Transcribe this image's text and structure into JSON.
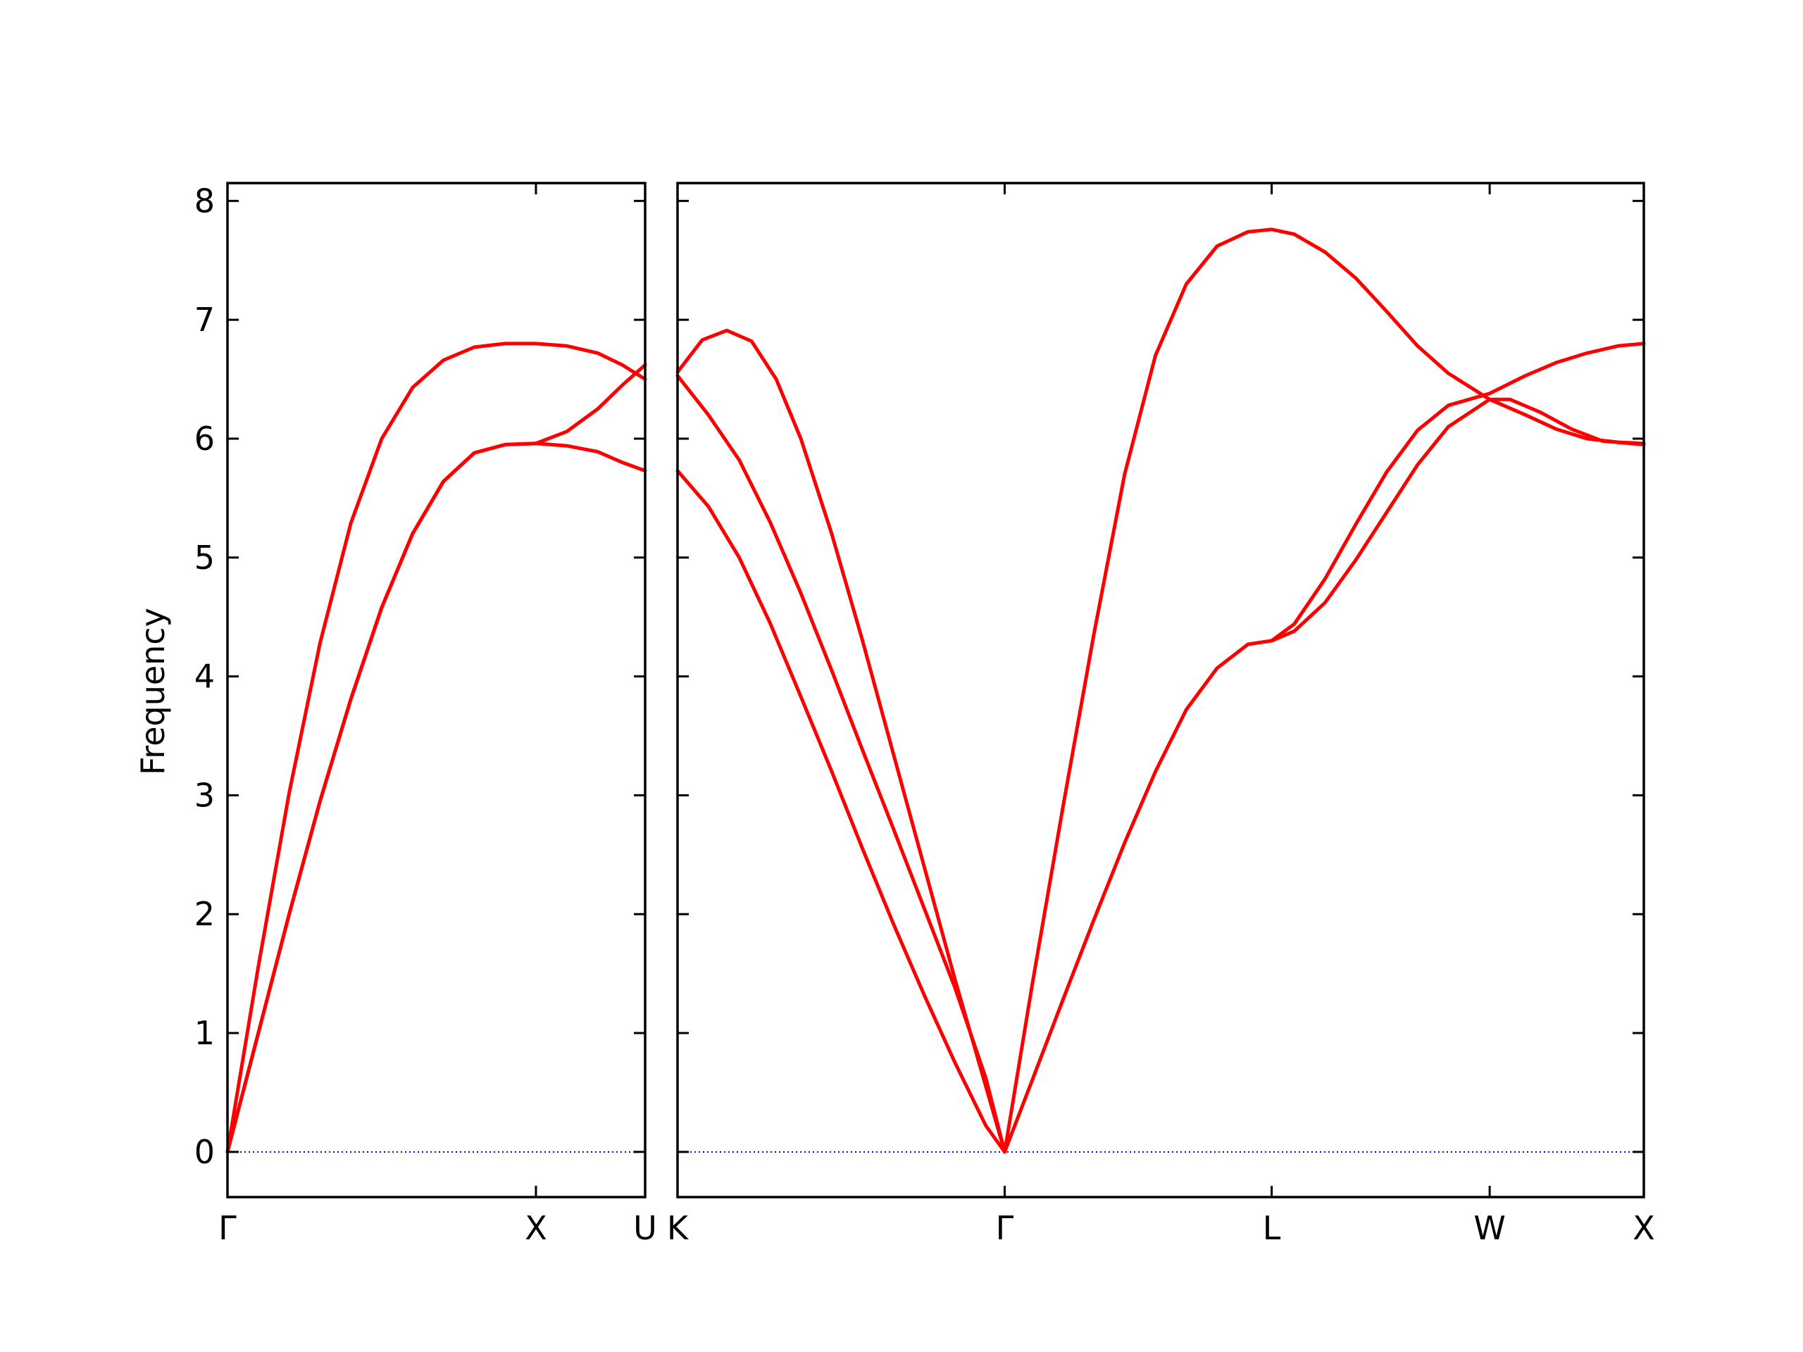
{
  "chart_data": {
    "type": "line",
    "ylabel": "Frequency",
    "ylim": [
      -0.38,
      8.15
    ],
    "yticks": [
      0,
      1,
      2,
      3,
      4,
      5,
      6,
      7,
      8
    ],
    "grid": false,
    "colors": {
      "band": "#ff0000",
      "zero_line": "#0000cc",
      "axes": "#000000"
    },
    "panels": [
      {
        "xticks": [
          {
            "x": 0.0,
            "label": "Γ"
          },
          {
            "x": 1.0,
            "label": "X"
          },
          {
            "x": 1.354,
            "label": "U"
          }
        ],
        "xlim": [
          0.0,
          1.354
        ],
        "series": [
          {
            "points": [
              [
                0,
                0
              ],
              [
                0.1,
                1.56
              ],
              [
                0.2,
                3.02
              ],
              [
                0.3,
                4.28
              ],
              [
                0.4,
                5.29
              ],
              [
                0.5,
                6.0
              ],
              [
                0.6,
                6.43
              ],
              [
                0.7,
                6.66
              ],
              [
                0.8,
                6.77
              ],
              [
                0.9,
                6.8
              ],
              [
                1.0,
                6.8
              ],
              [
                1.1,
                6.78
              ],
              [
                1.2,
                6.72
              ],
              [
                1.28,
                6.62
              ],
              [
                1.354,
                6.5
              ]
            ]
          },
          {
            "points": [
              [
                0,
                0
              ],
              [
                0.1,
                1.0
              ],
              [
                0.2,
                2.0
              ],
              [
                0.3,
                2.95
              ],
              [
                0.4,
                3.81
              ],
              [
                0.5,
                4.58
              ],
              [
                0.6,
                5.2
              ],
              [
                0.7,
                5.64
              ],
              [
                0.8,
                5.88
              ],
              [
                0.9,
                5.95
              ],
              [
                1.0,
                5.96
              ],
              [
                1.1,
                6.06
              ],
              [
                1.2,
                6.25
              ],
              [
                1.28,
                6.45
              ],
              [
                1.354,
                6.62
              ]
            ]
          },
          {
            "points": [
              [
                0,
                0
              ],
              [
                0.1,
                1.0
              ],
              [
                0.2,
                2.0
              ],
              [
                0.3,
                2.95
              ],
              [
                0.4,
                3.81
              ],
              [
                0.5,
                4.58
              ],
              [
                0.6,
                5.2
              ],
              [
                0.7,
                5.64
              ],
              [
                0.8,
                5.88
              ],
              [
                0.9,
                5.95
              ],
              [
                1.0,
                5.96
              ],
              [
                1.1,
                5.94
              ],
              [
                1.2,
                5.89
              ],
              [
                1.28,
                5.8
              ],
              [
                1.354,
                5.73
              ]
            ]
          }
        ]
      },
      {
        "xticks": [
          {
            "x": 0.0,
            "label": "K"
          },
          {
            "x": 1.061,
            "label": "Γ"
          },
          {
            "x": 1.927,
            "label": "L"
          },
          {
            "x": 2.634,
            "label": "W"
          },
          {
            "x": 3.134,
            "label": "X"
          }
        ],
        "xlim": [
          0.0,
          3.134
        ],
        "series": [
          {
            "points": [
              [
                0,
                6.56
              ],
              [
                0.08,
                6.83
              ],
              [
                0.16,
                6.91
              ],
              [
                0.24,
                6.82
              ],
              [
                0.32,
                6.5
              ],
              [
                0.4,
                6.0
              ],
              [
                0.5,
                5.2
              ],
              [
                0.6,
                4.3
              ],
              [
                0.7,
                3.35
              ],
              [
                0.8,
                2.4
              ],
              [
                0.9,
                1.45
              ],
              [
                1.0,
                0.55
              ],
              [
                1.061,
                0
              ]
            ]
          },
          {
            "points": [
              [
                0,
                6.53
              ],
              [
                0.1,
                6.2
              ],
              [
                0.2,
                5.82
              ],
              [
                0.3,
                5.3
              ],
              [
                0.4,
                4.7
              ],
              [
                0.5,
                4.05
              ],
              [
                0.6,
                3.38
              ],
              [
                0.7,
                2.72
              ],
              [
                0.8,
                2.05
              ],
              [
                0.9,
                1.38
              ],
              [
                1.0,
                0.62
              ],
              [
                1.061,
                0
              ]
            ]
          },
          {
            "points": [
              [
                0,
                5.73
              ],
              [
                0.1,
                5.43
              ],
              [
                0.2,
                5.0
              ],
              [
                0.3,
                4.45
              ],
              [
                0.4,
                3.83
              ],
              [
                0.5,
                3.2
              ],
              [
                0.6,
                2.55
              ],
              [
                0.7,
                1.92
              ],
              [
                0.8,
                1.32
              ],
              [
                0.9,
                0.75
              ],
              [
                1.0,
                0.22
              ],
              [
                1.061,
                0
              ]
            ]
          },
          {
            "points": [
              [
                1.061,
                0
              ],
              [
                1.15,
                1.4
              ],
              [
                1.25,
                2.9
              ],
              [
                1.35,
                4.35
              ],
              [
                1.45,
                5.7
              ],
              [
                1.55,
                6.7
              ],
              [
                1.65,
                7.3
              ],
              [
                1.75,
                7.62
              ],
              [
                1.85,
                7.74
              ],
              [
                1.927,
                7.76
              ],
              [
                2.0,
                7.72
              ],
              [
                2.1,
                7.57
              ],
              [
                2.2,
                7.35
              ],
              [
                2.3,
                7.07
              ],
              [
                2.4,
                6.78
              ],
              [
                2.5,
                6.55
              ],
              [
                2.634,
                6.33
              ],
              [
                2.75,
                6.2
              ],
              [
                2.85,
                6.08
              ],
              [
                2.95,
                6.0
              ],
              [
                3.05,
                5.97
              ],
              [
                3.134,
                5.96
              ]
            ]
          },
          {
            "points": [
              [
                1.061,
                0
              ],
              [
                1.15,
                0.6
              ],
              [
                1.25,
                1.28
              ],
              [
                1.35,
                1.95
              ],
              [
                1.45,
                2.6
              ],
              [
                1.55,
                3.2
              ],
              [
                1.65,
                3.72
              ],
              [
                1.75,
                4.07
              ],
              [
                1.85,
                4.27
              ],
              [
                1.927,
                4.3
              ],
              [
                2.0,
                4.44
              ],
              [
                2.1,
                4.82
              ],
              [
                2.2,
                5.28
              ],
              [
                2.3,
                5.72
              ],
              [
                2.4,
                6.07
              ],
              [
                2.5,
                6.28
              ],
              [
                2.634,
                6.38
              ],
              [
                2.75,
                6.53
              ],
              [
                2.85,
                6.64
              ],
              [
                2.95,
                6.72
              ],
              [
                3.05,
                6.78
              ],
              [
                3.134,
                6.8
              ]
            ]
          },
          {
            "points": [
              [
                1.927,
                4.3
              ],
              [
                2.0,
                4.38
              ],
              [
                2.1,
                4.62
              ],
              [
                2.2,
                4.98
              ],
              [
                2.3,
                5.38
              ],
              [
                2.4,
                5.78
              ],
              [
                2.5,
                6.1
              ],
              [
                2.634,
                6.33
              ],
              [
                2.7,
                6.33
              ],
              [
                2.8,
                6.22
              ],
              [
                2.9,
                6.08
              ],
              [
                3.0,
                5.98
              ],
              [
                3.134,
                5.95
              ]
            ]
          }
        ]
      }
    ]
  }
}
